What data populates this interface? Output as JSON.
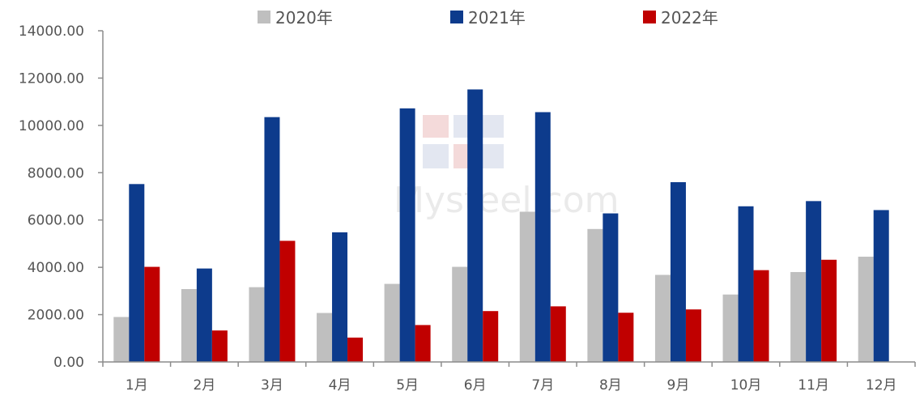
{
  "chart_data": {
    "type": "bar",
    "categories": [
      "1月",
      "2月",
      "3月",
      "4月",
      "5月",
      "6月",
      "7月",
      "8月",
      "9月",
      "10月",
      "11月",
      "12月"
    ],
    "series": [
      {
        "name": "2020年",
        "color": "#bfbfbf",
        "values": [
          1900,
          3080,
          3160,
          2070,
          3300,
          4020,
          6350,
          5620,
          3680,
          2850,
          3800,
          4450
        ]
      },
      {
        "name": "2021年",
        "color": "#0d3b8c",
        "values": [
          7520,
          3950,
          10350,
          5480,
          10720,
          11520,
          10560,
          6280,
          7600,
          6580,
          6800,
          6420
        ]
      },
      {
        "name": "2022年",
        "color": "#c00000",
        "values": [
          4020,
          1330,
          5120,
          1030,
          1560,
          2150,
          2350,
          2080,
          2220,
          3880,
          4320,
          null
        ]
      }
    ],
    "yticks": [
      "0.00",
      "2000.00",
      "4000.00",
      "6000.00",
      "8000.00",
      "10000.00",
      "12000.00",
      "14000.00"
    ],
    "ylim": [
      0,
      14000
    ],
    "legend_position": "top",
    "grid": false
  },
  "watermark": {
    "text": "Mysteel.com"
  }
}
